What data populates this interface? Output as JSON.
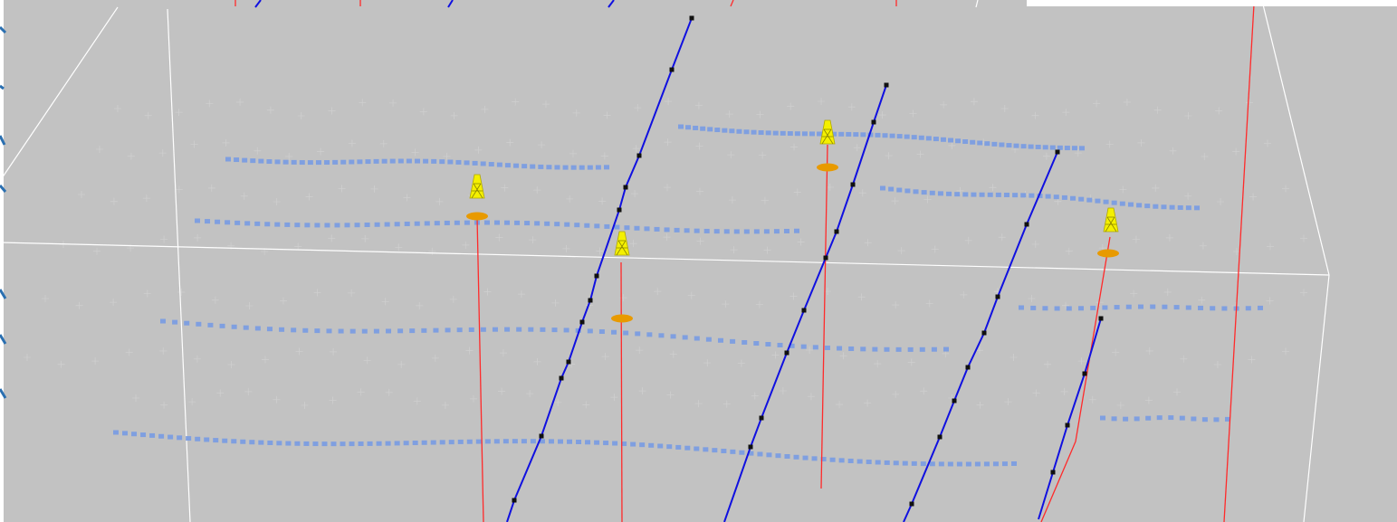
{
  "viewport": {
    "background": "#c2c2c2",
    "bounding_box_color": "#ffffff",
    "grid_marker_color": "#d9d9d9",
    "horizon_marker_color": "#7f9fe0",
    "fault_line_color": "#1010e0",
    "fault_node_color": "#101010",
    "well_trajectory_color": "#ff2a2a",
    "well_marker_color": "#e89a00",
    "wellhead_icon": "oil-derrick-icon",
    "wellhead_icon_color": "#f4f000",
    "overlay_panel_color": "#ffffff"
  }
}
